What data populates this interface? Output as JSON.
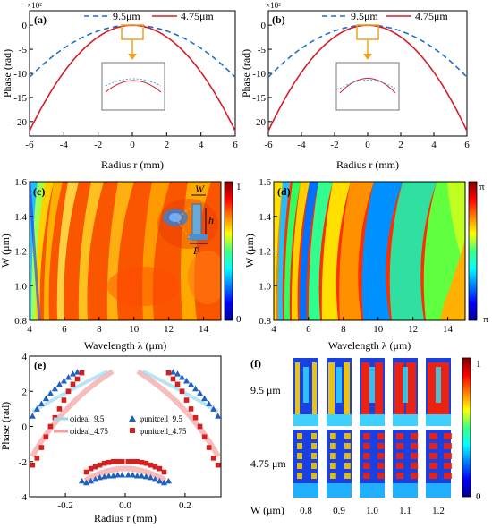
{
  "chart_data": [
    {
      "id": "a",
      "panel_label": "(a)",
      "type": "line",
      "xlabel": "Radius r (mm)",
      "ylabel": "Phase (rad)",
      "y_multiplier": "×10²",
      "xlim": [
        -6,
        6
      ],
      "ylim": [
        -23,
        3
      ],
      "xticks": [
        "-6",
        "-4",
        "-2",
        "0",
        "2",
        "4",
        "6"
      ],
      "yticks": [
        "0",
        "-5",
        "-10",
        "-15",
        "-20"
      ],
      "series": [
        {
          "name": "9.5μm",
          "color": "#1f6fc5",
          "style": "dashed",
          "a": 0.3
        },
        {
          "name": "4.75μm",
          "color": "#d21f2a",
          "style": "solid",
          "a": 0.61
        }
      ]
    },
    {
      "id": "b",
      "panel_label": "(b)",
      "type": "line",
      "xlabel": "Radius r (mm)",
      "ylabel": "Phase (rad)",
      "y_multiplier": "×10²",
      "xlim": [
        -6,
        6
      ],
      "ylim": [
        -23,
        3
      ],
      "xticks": [
        "-6",
        "-4",
        "-2",
        "0",
        "2",
        "4",
        "6"
      ],
      "yticks": [
        "0",
        "-5",
        "-10",
        "-15",
        "-20"
      ],
      "series": [
        {
          "name": "9.5μm",
          "color": "#1f6fc5",
          "style": "dashed",
          "a": 0.3
        },
        {
          "name": "4.75μm",
          "color": "#d21f2a",
          "style": "solid",
          "a": 0.61
        }
      ]
    },
    {
      "id": "c",
      "panel_label": "(c)",
      "type": "heatmap",
      "xlabel": "Wavelength λ (μm)",
      "ylabel": "W (μm)",
      "xlim": [
        4,
        15
      ],
      "ylim": [
        0.8,
        1.6
      ],
      "xticks": [
        "4",
        "6",
        "8",
        "10",
        "12",
        "14"
      ],
      "yticks": [
        "0.8",
        "1.0",
        "1.2",
        "1.4",
        "1.6"
      ],
      "colorbar_ticks": [
        "1",
        "0"
      ],
      "inset_labels": [
        "W",
        "h",
        "P"
      ]
    },
    {
      "id": "d",
      "panel_label": "(d)",
      "type": "heatmap",
      "xlabel": "Wavelength λ (μm)",
      "ylabel": "W (μm)",
      "xlim": [
        4,
        15
      ],
      "ylim": [
        0.8,
        1.6
      ],
      "xticks": [
        "4",
        "6",
        "8",
        "10",
        "12",
        "14"
      ],
      "yticks": [
        "0.8",
        "1.0",
        "1.2",
        "1.4",
        "1.6"
      ],
      "colorbar_ticks": [
        "π",
        "−π"
      ]
    },
    {
      "id": "e",
      "panel_label": "(e)",
      "type": "scatter",
      "xlabel": "Radius r (mm)",
      "ylabel": "Phase (rad)",
      "xlim": [
        -0.32,
        0.32
      ],
      "ylim": [
        -4,
        4
      ],
      "xticks": [
        "-0.2",
        "0.0",
        "0.2"
      ],
      "yticks": [
        "4",
        "2",
        "0",
        "-2",
        "-4"
      ],
      "legend": [
        "φideal_9.5",
        "φideal_4.75",
        "φunitcell_9.5",
        "φunitcell_4.75"
      ],
      "series": [
        {
          "name": "φunitcell_9.5",
          "color": "#1f5fbf",
          "marker": "triangle",
          "x": [
            -0.31,
            -0.295,
            -0.28,
            -0.265,
            -0.25,
            -0.235,
            -0.22,
            -0.205,
            -0.19,
            -0.175,
            -0.16,
            -0.145,
            -0.13,
            -0.115,
            -0.1,
            -0.085,
            -0.07,
            -0.055,
            -0.04,
            -0.025,
            -0.01,
            0.01,
            0.025,
            0.04,
            0.055,
            0.07,
            0.085,
            0.1,
            0.115,
            0.13,
            0.145,
            0.16,
            0.175,
            0.19,
            0.205,
            0.22,
            0.235,
            0.25,
            0.265,
            0.28,
            0.295,
            0.31
          ],
          "y": [
            0.6,
            1.0,
            1.3,
            1.6,
            1.9,
            2.15,
            2.4,
            2.6,
            2.8,
            3.0,
            3.1,
            -3.1,
            -3.2,
            -3.1,
            -3.0,
            -2.9,
            -2.85,
            -2.8,
            -2.8,
            -2.75,
            -2.75,
            -2.75,
            -2.75,
            -2.8,
            -2.8,
            -2.85,
            -2.9,
            -3.0,
            -3.1,
            -3.2,
            -3.1,
            3.1,
            3.0,
            2.8,
            2.6,
            2.4,
            2.15,
            1.9,
            1.6,
            1.3,
            1.0,
            0.6
          ]
        },
        {
          "name": "φunitcell_4.75",
          "color": "#d62020",
          "marker": "square",
          "x": [
            -0.31,
            -0.295,
            -0.28,
            -0.265,
            -0.25,
            -0.235,
            -0.22,
            -0.205,
            -0.19,
            -0.175,
            -0.16,
            -0.145,
            -0.13,
            -0.115,
            -0.1,
            -0.085,
            -0.07,
            -0.055,
            -0.04,
            -0.025,
            -0.01,
            0.01,
            0.025,
            0.04,
            0.055,
            0.07,
            0.085,
            0.1,
            0.115,
            0.13,
            0.145,
            0.16,
            0.175,
            0.19,
            0.205,
            0.22,
            0.235,
            0.25,
            0.265,
            0.28,
            0.295,
            0.31
          ],
          "y": [
            -2.2,
            -1.8,
            -1.2,
            -0.6,
            0.0,
            0.5,
            1.0,
            1.5,
            2.0,
            2.4,
            2.7,
            3.05,
            -2.6,
            -2.4,
            -2.3,
            -2.2,
            -2.1,
            -2.05,
            -2.0,
            -2.0,
            -2.0,
            -2.0,
            -2.0,
            -2.0,
            -2.05,
            -2.1,
            -2.2,
            -2.3,
            -2.4,
            -2.6,
            3.05,
            2.7,
            2.4,
            2.0,
            1.5,
            1.0,
            0.5,
            0.0,
            -0.6,
            -1.2,
            -1.8,
            -2.2
          ]
        }
      ]
    },
    {
      "id": "f",
      "panel_label": "(f)",
      "type": "heatmap",
      "row_labels": [
        "9.5 μm",
        "4.75 μm"
      ],
      "column_axis_label": "W (μm)",
      "columns": [
        "0.8",
        "0.9",
        "1.0",
        "1.1",
        "1.2"
      ],
      "colorbar_ticks": [
        "1",
        "0"
      ]
    }
  ]
}
